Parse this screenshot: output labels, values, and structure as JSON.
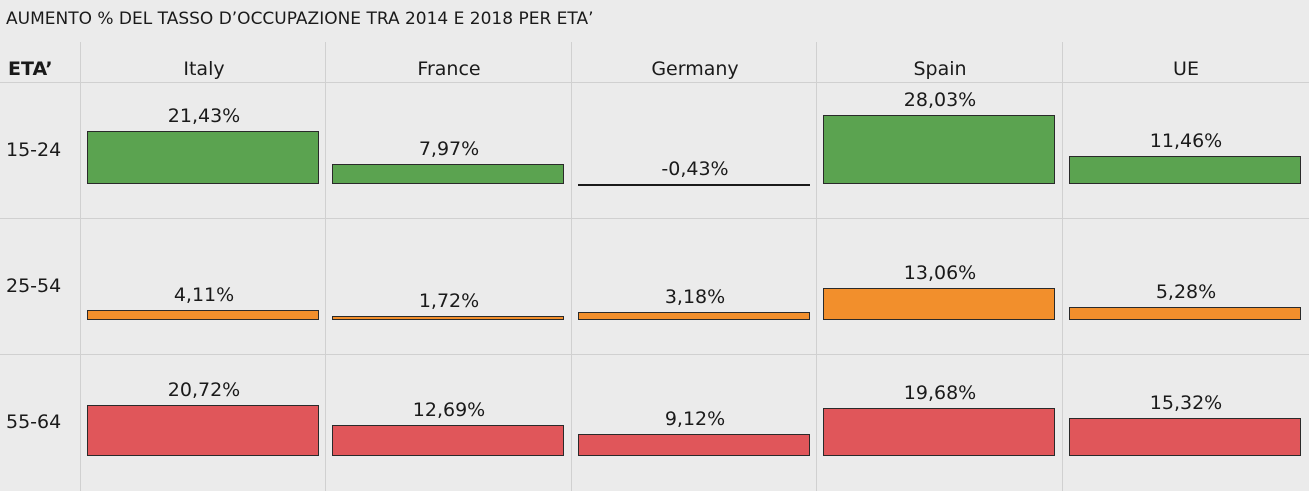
{
  "title": "AUMENTO % DEL TASSO D’OCCUPAZIONE TRA 2014 E 2018 PER ETA’",
  "row_axis_title": "ETA’",
  "chart_data": {
    "type": "bar",
    "title": "AUMENTO % DEL TASSO D’OCCUPAZIONE TRA 2014 E 2018 PER ETA’",
    "columns": [
      "Italy",
      "France",
      "Germany",
      "Spain",
      "UE"
    ],
    "rows": [
      "15-24",
      "25-54",
      "55-64"
    ],
    "row_colors": [
      "#5ba350",
      "#f28f2c",
      "#e0565a"
    ],
    "values": [
      [
        21.43,
        7.97,
        -0.43,
        28.03,
        11.46
      ],
      [
        4.11,
        1.72,
        3.18,
        13.06,
        5.28
      ],
      [
        20.72,
        12.69,
        9.12,
        19.68,
        15.32
      ]
    ],
    "labels": [
      [
        "21,43%",
        "7,97%",
        "-0,43%",
        "28,03%",
        "11,46%"
      ],
      [
        "4,11%",
        "1,72%",
        "3,18%",
        "13,06%",
        "5,28%"
      ],
      [
        "20,72%",
        "12,69%",
        "9,12%",
        "19,68%",
        "15,32%"
      ]
    ]
  }
}
